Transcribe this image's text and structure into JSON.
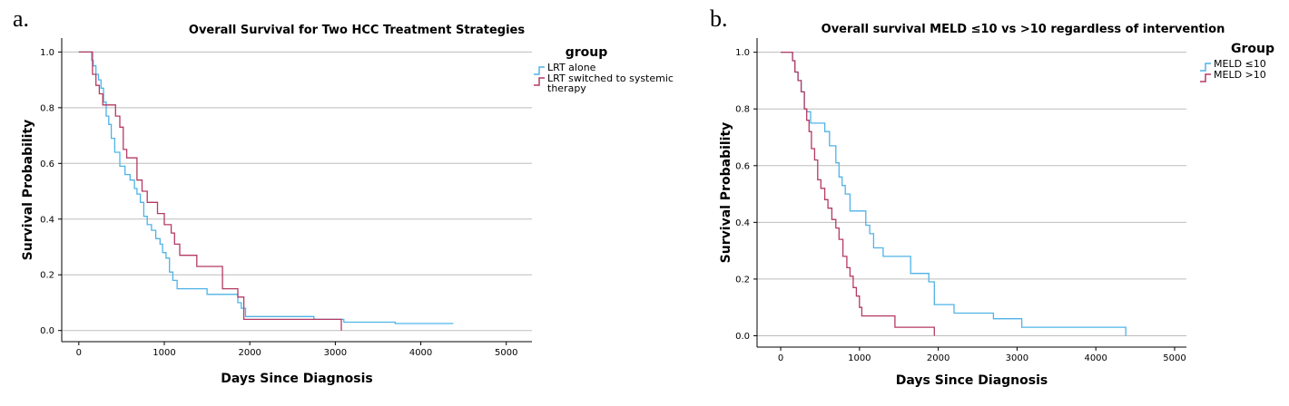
{
  "chart_data": [
    {
      "panel_label": "a.",
      "type": "line",
      "step": true,
      "title": "Overall Survival for Two HCC Treatment Strategies",
      "xlabel": "Days Since Diagnosis",
      "ylabel": "Survival Probability",
      "xlim": [
        -200,
        5300
      ],
      "ylim": [
        -0.04,
        1.05
      ],
      "xticks": [
        "0",
        "1000",
        "2000",
        "3000",
        "4000",
        "5000"
      ],
      "yticks": [
        "0.0",
        "0.2",
        "0.4",
        "0.6",
        "0.8",
        "1.0"
      ],
      "grid": "horizontal",
      "legend_title": "group",
      "legend_position": "right",
      "series": [
        {
          "name": "LRT alone",
          "color": "#4fb3e8",
          "x": [
            0,
            150,
            170,
            200,
            230,
            260,
            290,
            320,
            350,
            380,
            420,
            480,
            540,
            600,
            650,
            680,
            720,
            760,
            800,
            850,
            900,
            950,
            980,
            1020,
            1060,
            1100,
            1150,
            1500,
            1860,
            1900,
            1950,
            2100,
            2600,
            2750,
            3100,
            3700,
            4380
          ],
          "y": [
            1.0,
            0.97,
            0.95,
            0.92,
            0.9,
            0.87,
            0.82,
            0.77,
            0.74,
            0.69,
            0.64,
            0.59,
            0.56,
            0.54,
            0.51,
            0.49,
            0.46,
            0.41,
            0.38,
            0.36,
            0.33,
            0.31,
            0.28,
            0.26,
            0.21,
            0.18,
            0.15,
            0.13,
            0.1,
            0.08,
            0.05,
            0.05,
            0.05,
            0.04,
            0.03,
            0.025,
            0.025
          ]
        },
        {
          "name": "LRT switched to systemic therapy",
          "color": "#b53a64",
          "x": [
            0,
            160,
            200,
            240,
            280,
            320,
            430,
            480,
            520,
            560,
            680,
            740,
            800,
            920,
            1000,
            1080,
            1120,
            1180,
            1380,
            1680,
            1860,
            1930,
            2400,
            3070
          ],
          "y": [
            1.0,
            0.92,
            0.88,
            0.85,
            0.81,
            0.81,
            0.77,
            0.73,
            0.65,
            0.62,
            0.54,
            0.5,
            0.46,
            0.42,
            0.38,
            0.35,
            0.31,
            0.27,
            0.23,
            0.15,
            0.12,
            0.04,
            0.04,
            0.0
          ]
        }
      ]
    },
    {
      "panel_label": "b.",
      "type": "line",
      "step": true,
      "title": "Overall survival MELD ≤10 vs >10 regardless of intervention",
      "xlabel": "Days Since Diagnosis",
      "ylabel": "Survival Probability",
      "xlim": [
        -300,
        5150
      ],
      "ylim": [
        -0.04,
        1.05
      ],
      "xticks": [
        "0",
        "1000",
        "2000",
        "3000",
        "4000",
        "5000"
      ],
      "yticks": [
        "0.0",
        "0.2",
        "0.4",
        "0.6",
        "0.8",
        "1.0"
      ],
      "grid": "horizontal",
      "legend_title": "Group",
      "legend_position": "right",
      "series": [
        {
          "name": "MELD ≤10",
          "color": "#4fb3e8",
          "x": [
            0,
            150,
            180,
            220,
            260,
            300,
            330,
            380,
            450,
            560,
            620,
            700,
            740,
            780,
            820,
            880,
            1000,
            1080,
            1130,
            1180,
            1300,
            1650,
            1880,
            1950,
            2200,
            2700,
            3060,
            4380
          ],
          "y": [
            1.0,
            0.97,
            0.93,
            0.9,
            0.86,
            0.8,
            0.79,
            0.75,
            0.75,
            0.72,
            0.67,
            0.61,
            0.56,
            0.53,
            0.5,
            0.44,
            0.44,
            0.39,
            0.36,
            0.31,
            0.28,
            0.22,
            0.19,
            0.11,
            0.08,
            0.06,
            0.03,
            0.0
          ]
        },
        {
          "name": "MELD >10",
          "color": "#b53a64",
          "x": [
            0,
            150,
            180,
            220,
            260,
            300,
            330,
            360,
            390,
            430,
            470,
            510,
            560,
            600,
            650,
            700,
            740,
            790,
            840,
            880,
            920,
            960,
            1000,
            1030,
            1060,
            1100,
            1450,
            1950
          ],
          "y": [
            1.0,
            0.97,
            0.93,
            0.9,
            0.86,
            0.8,
            0.76,
            0.72,
            0.66,
            0.62,
            0.55,
            0.52,
            0.48,
            0.45,
            0.41,
            0.38,
            0.34,
            0.28,
            0.24,
            0.21,
            0.17,
            0.14,
            0.1,
            0.07,
            0.07,
            0.07,
            0.03,
            0.0
          ]
        }
      ]
    }
  ]
}
